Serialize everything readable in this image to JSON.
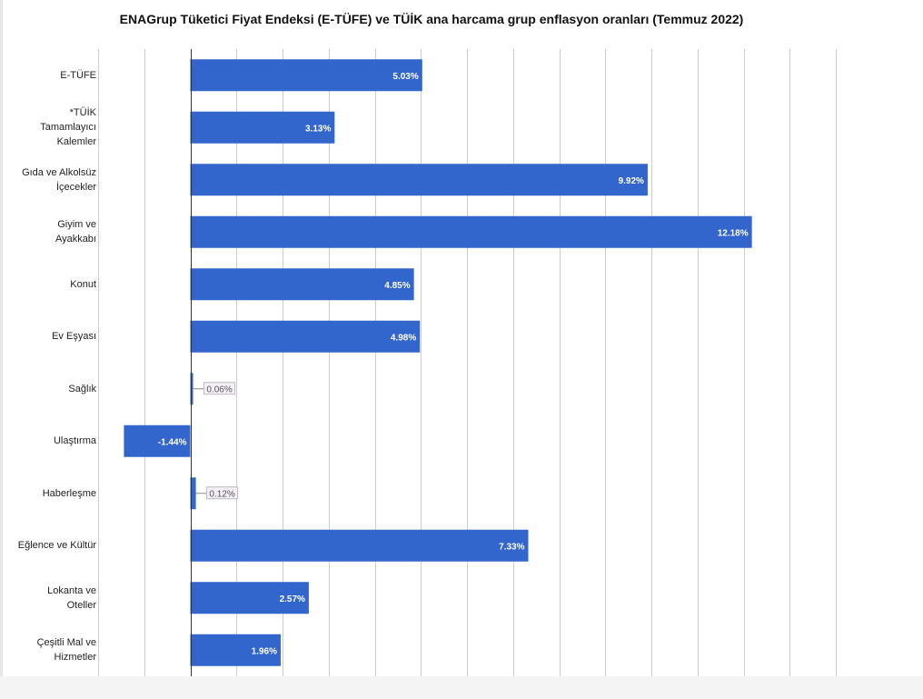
{
  "chart_data": {
    "type": "bar",
    "orientation": "horizontal",
    "title": "ENAGrup Tüketici Fiyat Endeksi (E-TÜFE) ve TÜİK ana harcama grup enflasyon oranları (Temmuz 2022)",
    "categories": [
      [
        "E-TÜFE"
      ],
      [
        "*TÜİK",
        "Tamamlayıcı",
        "Kalemler"
      ],
      [
        "Gıda ve Alkolsüz",
        "İçecekler"
      ],
      [
        "Giyim ve",
        "Ayakkabı"
      ],
      [
        "Konut"
      ],
      [
        "Ev Eşyası"
      ],
      [
        "Sağlık"
      ],
      [
        "Ulaştırma"
      ],
      [
        "Haberleşme"
      ],
      [
        "Eğlence ve Kültür"
      ],
      [
        "Lokanta ve",
        "Oteller"
      ],
      [
        "Çeşitli Mal ve",
        "Hizmetler"
      ]
    ],
    "values": [
      5.03,
      3.13,
      9.92,
      12.18,
      4.85,
      4.98,
      0.06,
      -1.44,
      0.12,
      7.33,
      2.57,
      1.96
    ],
    "value_labels": [
      "5.03%",
      "3.13%",
      "9.92%",
      "12.18%",
      "4.85%",
      "4.98%",
      "0.06%",
      "-1.44%",
      "0.12%",
      "7.33%",
      "2.57%",
      "1.96%"
    ],
    "xlim": [
      -2,
      14
    ],
    "grid": true,
    "bar_color": "#3366cc",
    "grid_color": "#cccccc",
    "axis_color": "#333333",
    "small_label_bg": "#f5eef8"
  }
}
